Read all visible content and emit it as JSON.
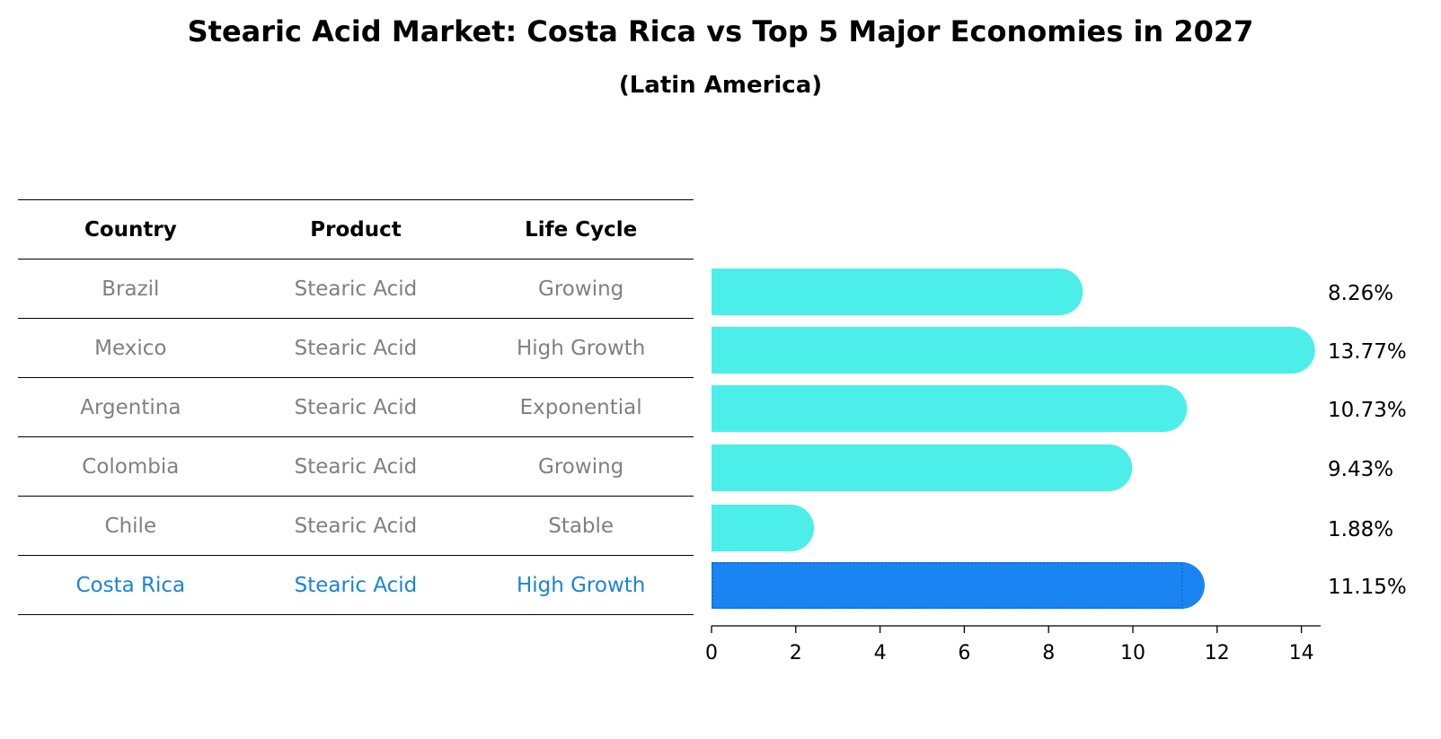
{
  "title": "Stearic Acid Market: Costa Rica vs Top 5 Major Economies in 2027",
  "subtitle": "(Latin America)",
  "table": {
    "headers": [
      "Country",
      "Product",
      "Life Cycle"
    ],
    "rows": [
      [
        "Brazil",
        "Stearic Acid",
        "Growing"
      ],
      [
        "Mexico",
        "Stearic Acid",
        "High Growth"
      ],
      [
        "Argentina",
        "Stearic Acid",
        "Exponential"
      ],
      [
        "Colombia",
        "Stearic Acid",
        "Growing"
      ],
      [
        "Chile",
        "Stearic Acid",
        "Stable"
      ],
      [
        "Costa Rica",
        "Stearic Acid",
        "High Growth"
      ]
    ]
  },
  "colors": {
    "bar": "#4ceeea",
    "highlight": "#1a84f2",
    "highlight_text": "#1a84d6",
    "muted_text": "#808080"
  },
  "chart_data": {
    "type": "bar",
    "orientation": "horizontal",
    "categories": [
      "Brazil",
      "Mexico",
      "Argentina",
      "Colombia",
      "Chile",
      "Costa Rica"
    ],
    "values": [
      8.26,
      13.77,
      10.73,
      9.43,
      1.88,
      11.15
    ],
    "labels": [
      "8.26%",
      "13.77%",
      "10.73%",
      "9.43%",
      "1.88%",
      "11.15%"
    ],
    "highlight": "Costa Rica",
    "xlim": [
      0,
      14.4
    ],
    "xticks": [
      0,
      2,
      4,
      6,
      8,
      10,
      12,
      14
    ],
    "xlabel": "",
    "ylabel": ""
  }
}
